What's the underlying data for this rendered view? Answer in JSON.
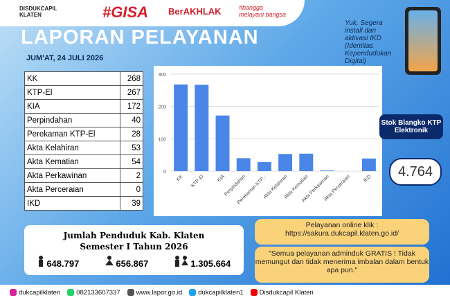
{
  "header": {
    "logo_text": "DISDUKCAPIL\nKLATEN",
    "gisa": "#GISA",
    "berakhlak": "BerAKHLAK",
    "bangga": "#bangga melayani bangsa"
  },
  "title": "LAPORAN PELAYANAN",
  "date": "JUM'AT, 24 JULI 2026",
  "table": {
    "rows": [
      [
        "KK",
        "268"
      ],
      [
        "KTP-El",
        "267"
      ],
      [
        "KIA",
        "172"
      ],
      [
        "Perpindahan",
        "40"
      ],
      [
        "Perekaman KTP-El",
        "28"
      ],
      [
        "Akta Kelahiran",
        "53"
      ],
      [
        "Akta Kematian",
        "54"
      ],
      [
        "Akta Perkawinan",
        "2"
      ],
      [
        "Akta Perceraian",
        "0"
      ],
      [
        "IKD",
        "39"
      ]
    ]
  },
  "chart_data": {
    "type": "bar",
    "categories": [
      "KK",
      "KTP-El",
      "KIA",
      "Perpindahan",
      "Perekaman KTP...",
      "Akta Kelahiran",
      "Akta Kematian",
      "Akta Perkawinan",
      "Akta Perceraian",
      "IKD"
    ],
    "values": [
      268,
      267,
      172,
      40,
      28,
      53,
      54,
      2,
      0,
      39
    ],
    "color": "#4a86e8",
    "ylim": [
      0,
      300
    ],
    "yticks": [
      0,
      100,
      200,
      300
    ],
    "grid": true
  },
  "ikd_promo": "Yuk, Segera install dan aktivasi IKD (Identitas Kependudukan Digital)",
  "stock": {
    "label": "Stok Blangko KTP Elektronik",
    "value": "4.764"
  },
  "population": {
    "title": "Jumlah Penduduk Kab. Klaten",
    "subtitle": "Semester I Tahun 2026",
    "male": "648.797",
    "female": "656.867",
    "total": "1.305.664"
  },
  "online": {
    "label": "Pelayanan online klik :",
    "url": "https://sakura.dukcapil.klaten.go.id/"
  },
  "quote": "\"Semua pelayanan adminduk GRATIS ! Tidak memungut dan tidak menerima imbalan dalam bentuk apa pun.\"",
  "footer": {
    "instagram": "dukcapilklaten",
    "whatsapp": "082133607337",
    "web": "www.lapor.go.id",
    "twitter": "dukcapilklaten1",
    "youtube": "Disdukcapil Klaten"
  }
}
